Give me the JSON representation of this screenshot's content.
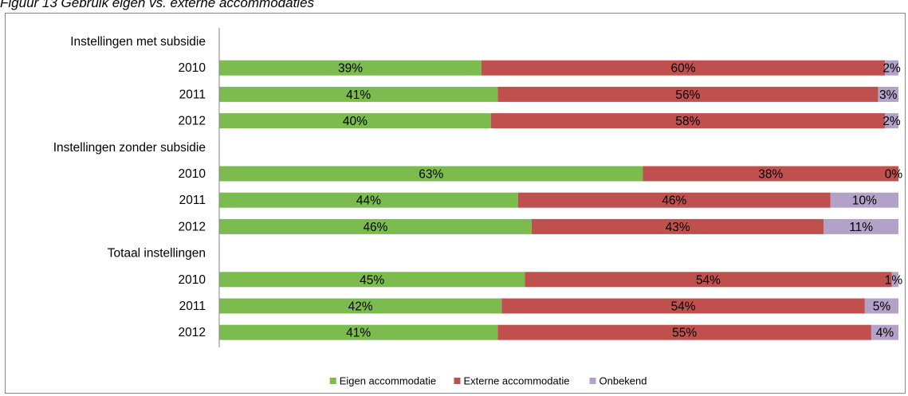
{
  "caption": "Figuur 13 Gebruik eigen vs. externe accommodaties",
  "chart_data": {
    "type": "bar",
    "orientation": "horizontal",
    "stacked": "percent",
    "title": "Figuur 13 Gebruik eigen vs. externe accommodaties",
    "groups": [
      {
        "label": "Instellingen met subsidie",
        "rows": [
          {
            "year": "2010",
            "values": [
              39,
              60,
              2
            ]
          },
          {
            "year": "2011",
            "values": [
              41,
              56,
              3
            ]
          },
          {
            "year": "2012",
            "values": [
              40,
              58,
              2
            ]
          }
        ]
      },
      {
        "label": "Instellingen zonder subsidie",
        "rows": [
          {
            "year": "2010",
            "values": [
              63,
              38,
              0
            ]
          },
          {
            "year": "2011",
            "values": [
              44,
              46,
              10
            ]
          },
          {
            "year": "2012",
            "values": [
              46,
              43,
              11
            ]
          }
        ]
      },
      {
        "label": "Totaal instellingen",
        "rows": [
          {
            "year": "2010",
            "values": [
              45,
              54,
              1
            ]
          },
          {
            "year": "2011",
            "values": [
              42,
              54,
              5
            ]
          },
          {
            "year": "2012",
            "values": [
              41,
              55,
              4
            ]
          }
        ]
      }
    ],
    "series": [
      {
        "name": "Eigen accommodatie",
        "color": "#7cbc4f"
      },
      {
        "name": "Externe accommodatie",
        "color": "#c0504d"
      },
      {
        "name": "Onbekend",
        "color": "#b3a2c7"
      }
    ],
    "data_label_suffix": "%",
    "legend_position": "bottom"
  }
}
